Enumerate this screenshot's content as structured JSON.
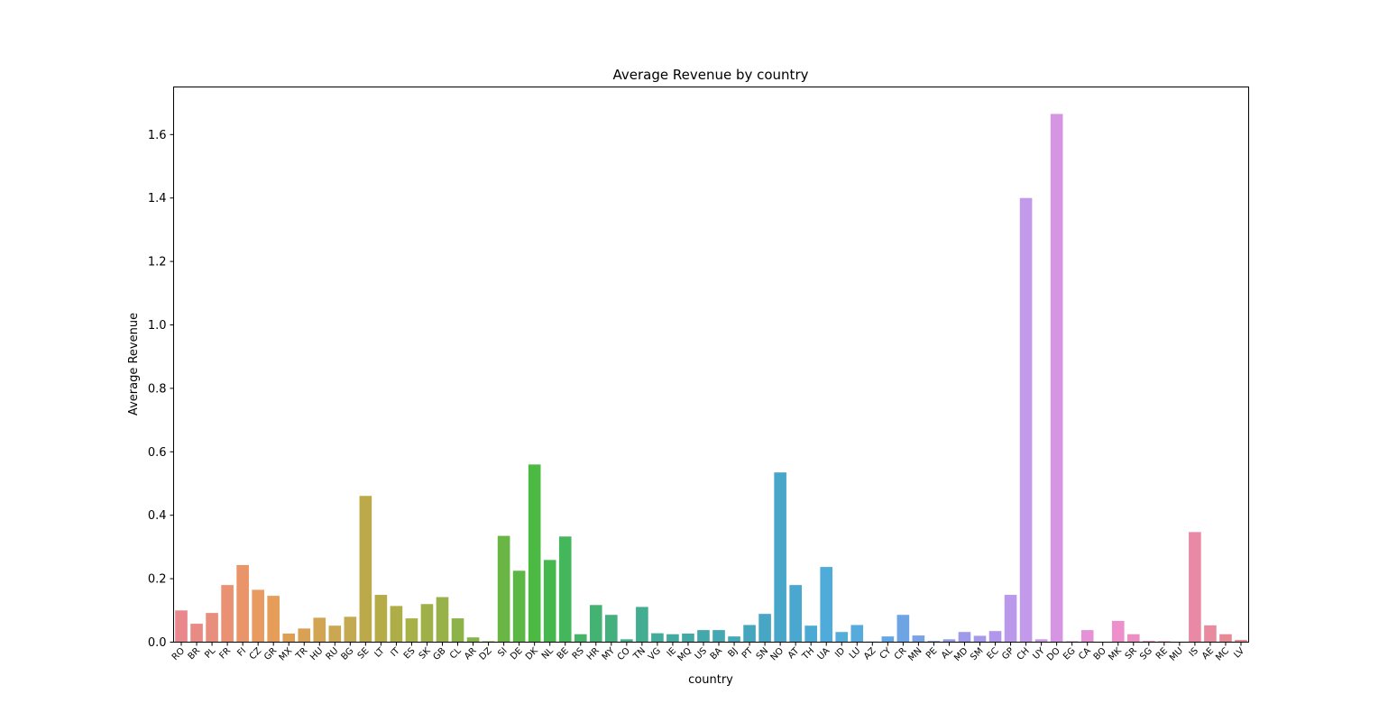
{
  "chart_data": {
    "type": "bar",
    "title": "Average Revenue by country",
    "xlabel": "country",
    "ylabel": "Average Revenue",
    "ylim": [
      0,
      1.75
    ],
    "yticks": [
      "0.0",
      "0.2",
      "0.4",
      "0.6",
      "0.8",
      "1.0",
      "1.2",
      "1.4",
      "1.6"
    ],
    "grid": false,
    "legend": "none",
    "categories": [
      "RO",
      "BR",
      "PL",
      "FR",
      "FI",
      "CZ",
      "GR",
      "MX",
      "TR",
      "HU",
      "RU",
      "BG",
      "SE",
      "LT",
      "IT",
      "ES",
      "SK",
      "GB",
      "CL",
      "AR",
      "DZ",
      "SI",
      "DE",
      "DK",
      "NL",
      "BE",
      "RS",
      "HR",
      "MY",
      "CO",
      "TN",
      "VG",
      "IE",
      "MQ",
      "US",
      "BA",
      "BJ",
      "PT",
      "SN",
      "NO",
      "AT",
      "TH",
      "UA",
      "ID",
      "LU",
      "AZ",
      "CY",
      "CR",
      "MN",
      "PE",
      "AL",
      "MD",
      "SM",
      "EC",
      "GP",
      "CH",
      "UY",
      "DO",
      "EG",
      "CA",
      "BO",
      "MK",
      "SR",
      "SG",
      "RE",
      "MU",
      "IS",
      "AE",
      "MC",
      "LV"
    ],
    "values": [
      0.1,
      0.058,
      0.092,
      0.18,
      0.243,
      0.165,
      0.146,
      0.027,
      0.043,
      0.077,
      0.052,
      0.08,
      0.461,
      0.149,
      0.114,
      0.075,
      0.12,
      0.142,
      0.075,
      0.015,
      0.003,
      0.335,
      0.225,
      0.56,
      0.259,
      0.333,
      0.025,
      0.117,
      0.086,
      0.009,
      0.111,
      0.028,
      0.025,
      0.027,
      0.038,
      0.038,
      0.018,
      0.054,
      0.089,
      0.535,
      0.18,
      0.052,
      0.237,
      0.032,
      0.054,
      0.002,
      0.018,
      0.086,
      0.021,
      0.004,
      0.009,
      0.032,
      0.02,
      0.035,
      0.149,
      1.4,
      0.009,
      1.665,
      0.003,
      0.038,
      0.0,
      0.067,
      0.025,
      0.004,
      0.003,
      0.0,
      0.347,
      0.053,
      0.025,
      0.007
    ],
    "colors": [
      "#e8878c",
      "#e88b85",
      "#e88e7c",
      "#e99172",
      "#e99569",
      "#e99a60",
      "#e69d59",
      "#df9f53",
      "#d9a153",
      "#d2a553",
      "#cba653",
      "#c4a953",
      "#bcaa4a",
      "#b5ac48",
      "#aeae48",
      "#a8b048",
      "#a0b048",
      "#98b148",
      "#8db248",
      "#82b448",
      "#76b548",
      "#69b644",
      "#5cb744",
      "#4cb943",
      "#44b74d",
      "#44b75c",
      "#45b468",
      "#44b273",
      "#44b07e",
      "#43ae88",
      "#43ad91",
      "#43ab99",
      "#42aaa0",
      "#42a9a6",
      "#43a8ac",
      "#44a7b1",
      "#45a7b7",
      "#46a6bd",
      "#47a6c3",
      "#48a6c9",
      "#4aa7cf",
      "#4ca9d4",
      "#4fabd9",
      "#53add9",
      "#56abdc",
      "#5baadf",
      "#62a6e3",
      "#6ca4e4",
      "#79a2e7",
      "#869fe8",
      "#949ce8",
      "#9f9ae9",
      "#a898e9",
      "#b197ea",
      "#ba98ea",
      "#c39ae9",
      "#cc97e5",
      "#d595e2",
      "#dd93de",
      "#e491d8",
      "#e991d1",
      "#ec8fca",
      "#ec8ec2",
      "#ec8dbb",
      "#ea8bb4",
      "#e98bac",
      "#e88aa5",
      "#e88b9e",
      "#e88996",
      "#e8888f"
    ]
  }
}
